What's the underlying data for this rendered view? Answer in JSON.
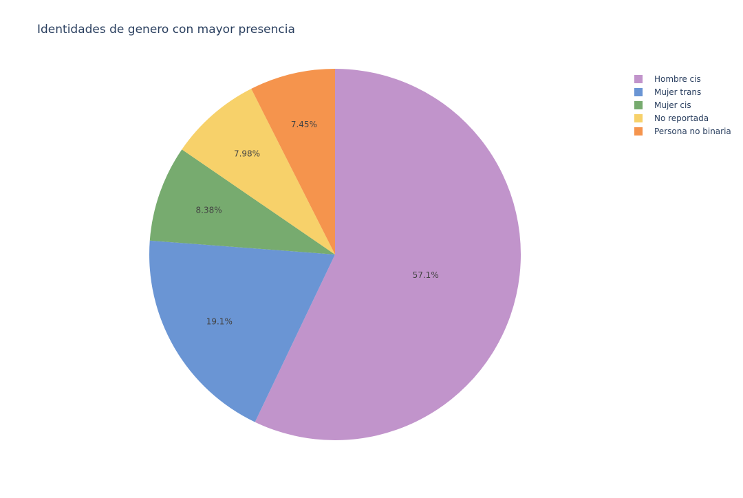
{
  "chart_data": {
    "type": "pie",
    "title": "Identidades de genero con mayor presencia",
    "labels": [
      "Hombre cis",
      "Mujer trans",
      "Mujer cis",
      "No reportada",
      "Persona no binaria"
    ],
    "values": [
      57.1,
      19.1,
      8.38,
      7.98,
      7.45
    ],
    "text_labels": [
      "57.1%",
      "19.1%",
      "8.38%",
      "7.98%",
      "7.45%"
    ],
    "colors": [
      "#c194cb",
      "#6a95d4",
      "#77ab6f",
      "#f7d16a",
      "#f5944d"
    ],
    "direction": "clockwise",
    "start": "top",
    "legend_position": "top-right"
  }
}
